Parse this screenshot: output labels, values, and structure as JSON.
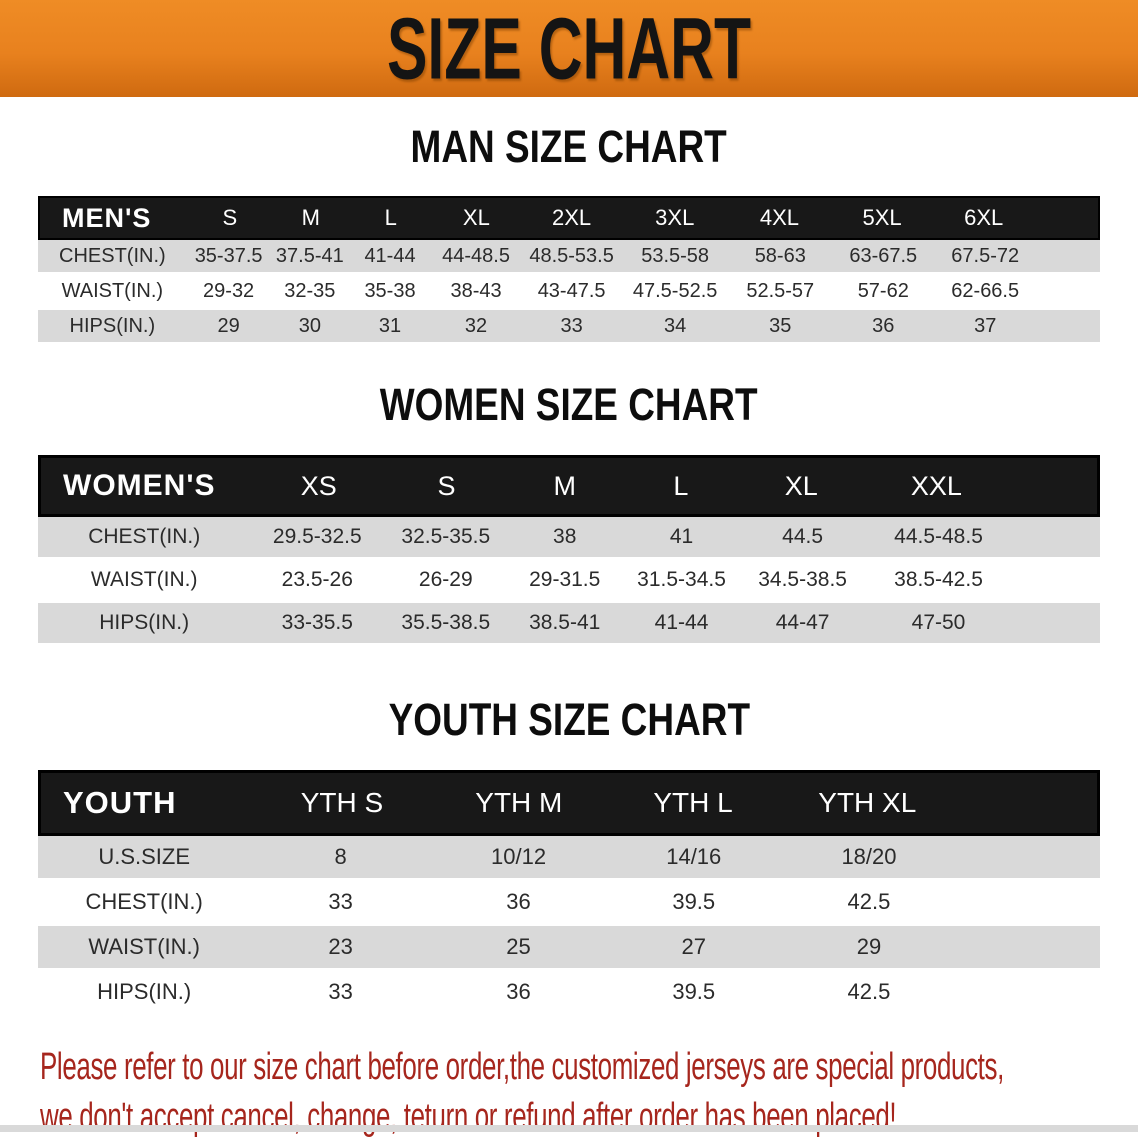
{
  "colors": {
    "banner-bg": "#e8811e",
    "banner-shadow": "#cf6a10",
    "header-bg": "#181818",
    "header-text": "#ffffff",
    "row-gray": "#d9d9d9",
    "row-white": "#ffffff",
    "title-text": "#0d0d0d",
    "cell-text": "#2b2b2b",
    "note-red": "#a6261d",
    "footer-strip": "#d9d9d9"
  },
  "banner": {
    "title": "SIZE CHART"
  },
  "sections": [
    {
      "title": "MAN SIZE CHART",
      "table": {
        "label": "MEN'S",
        "sizes": [
          "S",
          "M",
          "L",
          "XL",
          "2XL",
          "3XL",
          "4XL",
          "5XL",
          "6XL"
        ],
        "rows": [
          {
            "label": "CHEST(IN.)",
            "values": [
              "35-37.5",
              "37.5-41",
              "41-44",
              "44-48.5",
              "48.5-53.5",
              "53.5-58",
              "58-63",
              "63-67.5",
              "67.5-72"
            ]
          },
          {
            "label": "WAIST(IN.)",
            "values": [
              "29-32",
              "32-35",
              "35-38",
              "38-43",
              "43-47.5",
              "47.5-52.5",
              "52.5-57",
              "57-62",
              "62-66.5"
            ]
          },
          {
            "label": "HIPS(IN.)",
            "values": [
              "29",
              "30",
              "31",
              "32",
              "33",
              "34",
              "35",
              "36",
              "37"
            ]
          }
        ]
      }
    },
    {
      "title": "WOMEN SIZE CHART",
      "table": {
        "label": "WOMEN'S",
        "sizes": [
          "XS",
          "S",
          "M",
          "L",
          "XL",
          "XXL"
        ],
        "rows": [
          {
            "label": "CHEST(IN.)",
            "values": [
              "29.5-32.5",
              "32.5-35.5",
              "38",
              "41",
              "44.5",
              "44.5-48.5"
            ]
          },
          {
            "label": "WAIST(IN.)",
            "values": [
              "23.5-26",
              "26-29",
              "29-31.5",
              "31.5-34.5",
              "34.5-38.5",
              "38.5-42.5"
            ]
          },
          {
            "label": "HIPS(IN.)",
            "values": [
              "33-35.5",
              "35.5-38.5",
              "38.5-41",
              "41-44",
              "44-47",
              "47-50"
            ]
          }
        ]
      }
    },
    {
      "title": "YOUTH SIZE CHART",
      "table": {
        "label": "YOUTH",
        "sizes": [
          "YTH S",
          "YTH M",
          "YTH L",
          "YTH XL"
        ],
        "rows": [
          {
            "label": "U.S.SIZE",
            "values": [
              "8",
              "10/12",
              "14/16",
              "18/20"
            ]
          },
          {
            "label": "CHEST(IN.)",
            "values": [
              "33",
              "36",
              "39.5",
              "42.5"
            ]
          },
          {
            "label": "WAIST(IN.)",
            "values": [
              "23",
              "25",
              "27",
              "29"
            ]
          },
          {
            "label": "HIPS(IN.)",
            "values": [
              "33",
              "36",
              "39.5",
              "42.5"
            ]
          }
        ]
      }
    }
  ],
  "note": {
    "line1": "Please refer to our size chart before order,the customized jerseys are special products,",
    "line2": "we don't accept cancel, change, teturn or refund after order has been placed!"
  }
}
